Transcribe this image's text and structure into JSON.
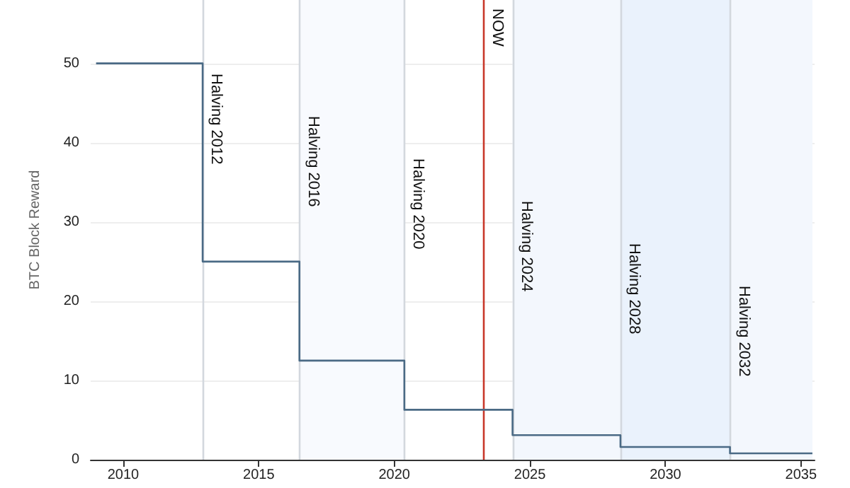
{
  "chart_data": {
    "type": "step",
    "ylabel": "BTC Block Reward",
    "x": [
      2009,
      2012.93,
      2016.5,
      2020.37,
      2024.36,
      2028.34,
      2032.38,
      2035.42
    ],
    "series": [
      {
        "color": "#4a6a85",
        "values": [
          50,
          25,
          12.5,
          6.3,
          3.1,
          1.6,
          0.8,
          0.8
        ]
      }
    ],
    "xlim": [
      2008.8,
      2035.5
    ],
    "xticks": [
      2010,
      2015,
      2020,
      2025,
      2030,
      2035
    ],
    "ylim": [
      0,
      58
    ],
    "yticks": [
      0,
      10,
      20,
      30,
      40,
      50
    ],
    "grid": "y",
    "marker": "none",
    "line_style": "solid",
    "bands": [
      {
        "axis": "x",
        "from": 2016.5,
        "to": 2020.37,
        "color": "#f8fafe"
      },
      {
        "axis": "x",
        "from": 2024.36,
        "to": 2028.34,
        "color": "#f3f7fd"
      },
      {
        "axis": "x",
        "from": 2028.34,
        "to": 2032.38,
        "color": "#eaf2fc"
      },
      {
        "axis": "x",
        "from": 2032.38,
        "to": 2035.42,
        "color": "#f3f7fd"
      }
    ],
    "ref_lines": [
      {
        "axis": "x",
        "value": 2023.3,
        "label": "NOW",
        "color": "#c8382a"
      },
      {
        "axis": "x",
        "value": 2012.93,
        "label": "Halving 2012",
        "color": "#d3d8de"
      },
      {
        "axis": "x",
        "value": 2016.5,
        "label": "Halving 2016",
        "color": "#d3d8de"
      },
      {
        "axis": "x",
        "value": 2020.37,
        "label": "Halving 2020",
        "color": "#d3d8de"
      },
      {
        "axis": "x",
        "value": 2024.36,
        "label": "Halving 2024",
        "color": "#d3d8de"
      },
      {
        "axis": "x",
        "value": 2028.34,
        "label": "Halving 2028",
        "color": "#d3d8de"
      },
      {
        "axis": "x",
        "value": 2032.38,
        "label": "Halving 2032",
        "color": "#d3d8de"
      }
    ]
  }
}
